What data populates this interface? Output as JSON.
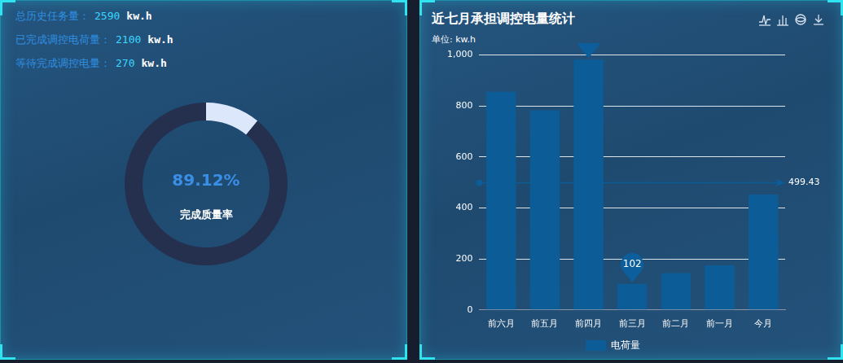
{
  "stats": [
    {
      "label": "总历史任务量：",
      "value": 2590,
      "unit": "kw.h"
    },
    {
      "label": "已完成调控电荷量：",
      "value": 2100,
      "unit": "kw.h"
    },
    {
      "label": "等待完成调控电量：",
      "value": 270,
      "unit": "kw.h"
    }
  ],
  "chart_data": [
    {
      "type": "doughnut",
      "center_text": "89.12%",
      "subtitle": "完成质量率",
      "values": [
        10.88,
        89.12
      ],
      "colors": [
        "#dde7fb",
        "#25304e"
      ]
    },
    {
      "type": "bar",
      "title": "近七月承担调控电量统计",
      "y_label": "单位: kw.h",
      "categories": [
        "前六月",
        "前五月",
        "前四月",
        "前三月",
        "前二月",
        "前一月",
        "今月"
      ],
      "series": [
        {
          "name": "电荷量",
          "color": "#0c5c98",
          "values": [
            856,
            783,
            982,
            102,
            145,
            175,
            453
          ]
        }
      ],
      "ylim": [
        0,
        1000
      ],
      "yticks": [
        0,
        200,
        400,
        600,
        800,
        {
          "value": 1000,
          "label": "1,000"
        }
      ],
      "grid": true,
      "legend": "bottom",
      "annotations": [
        {
          "type": "max",
          "category": "前四月",
          "value": 982
        },
        {
          "type": "min",
          "category": "前三月",
          "value": 102
        },
        {
          "type": "average",
          "value": 499.43
        }
      ]
    }
  ]
}
